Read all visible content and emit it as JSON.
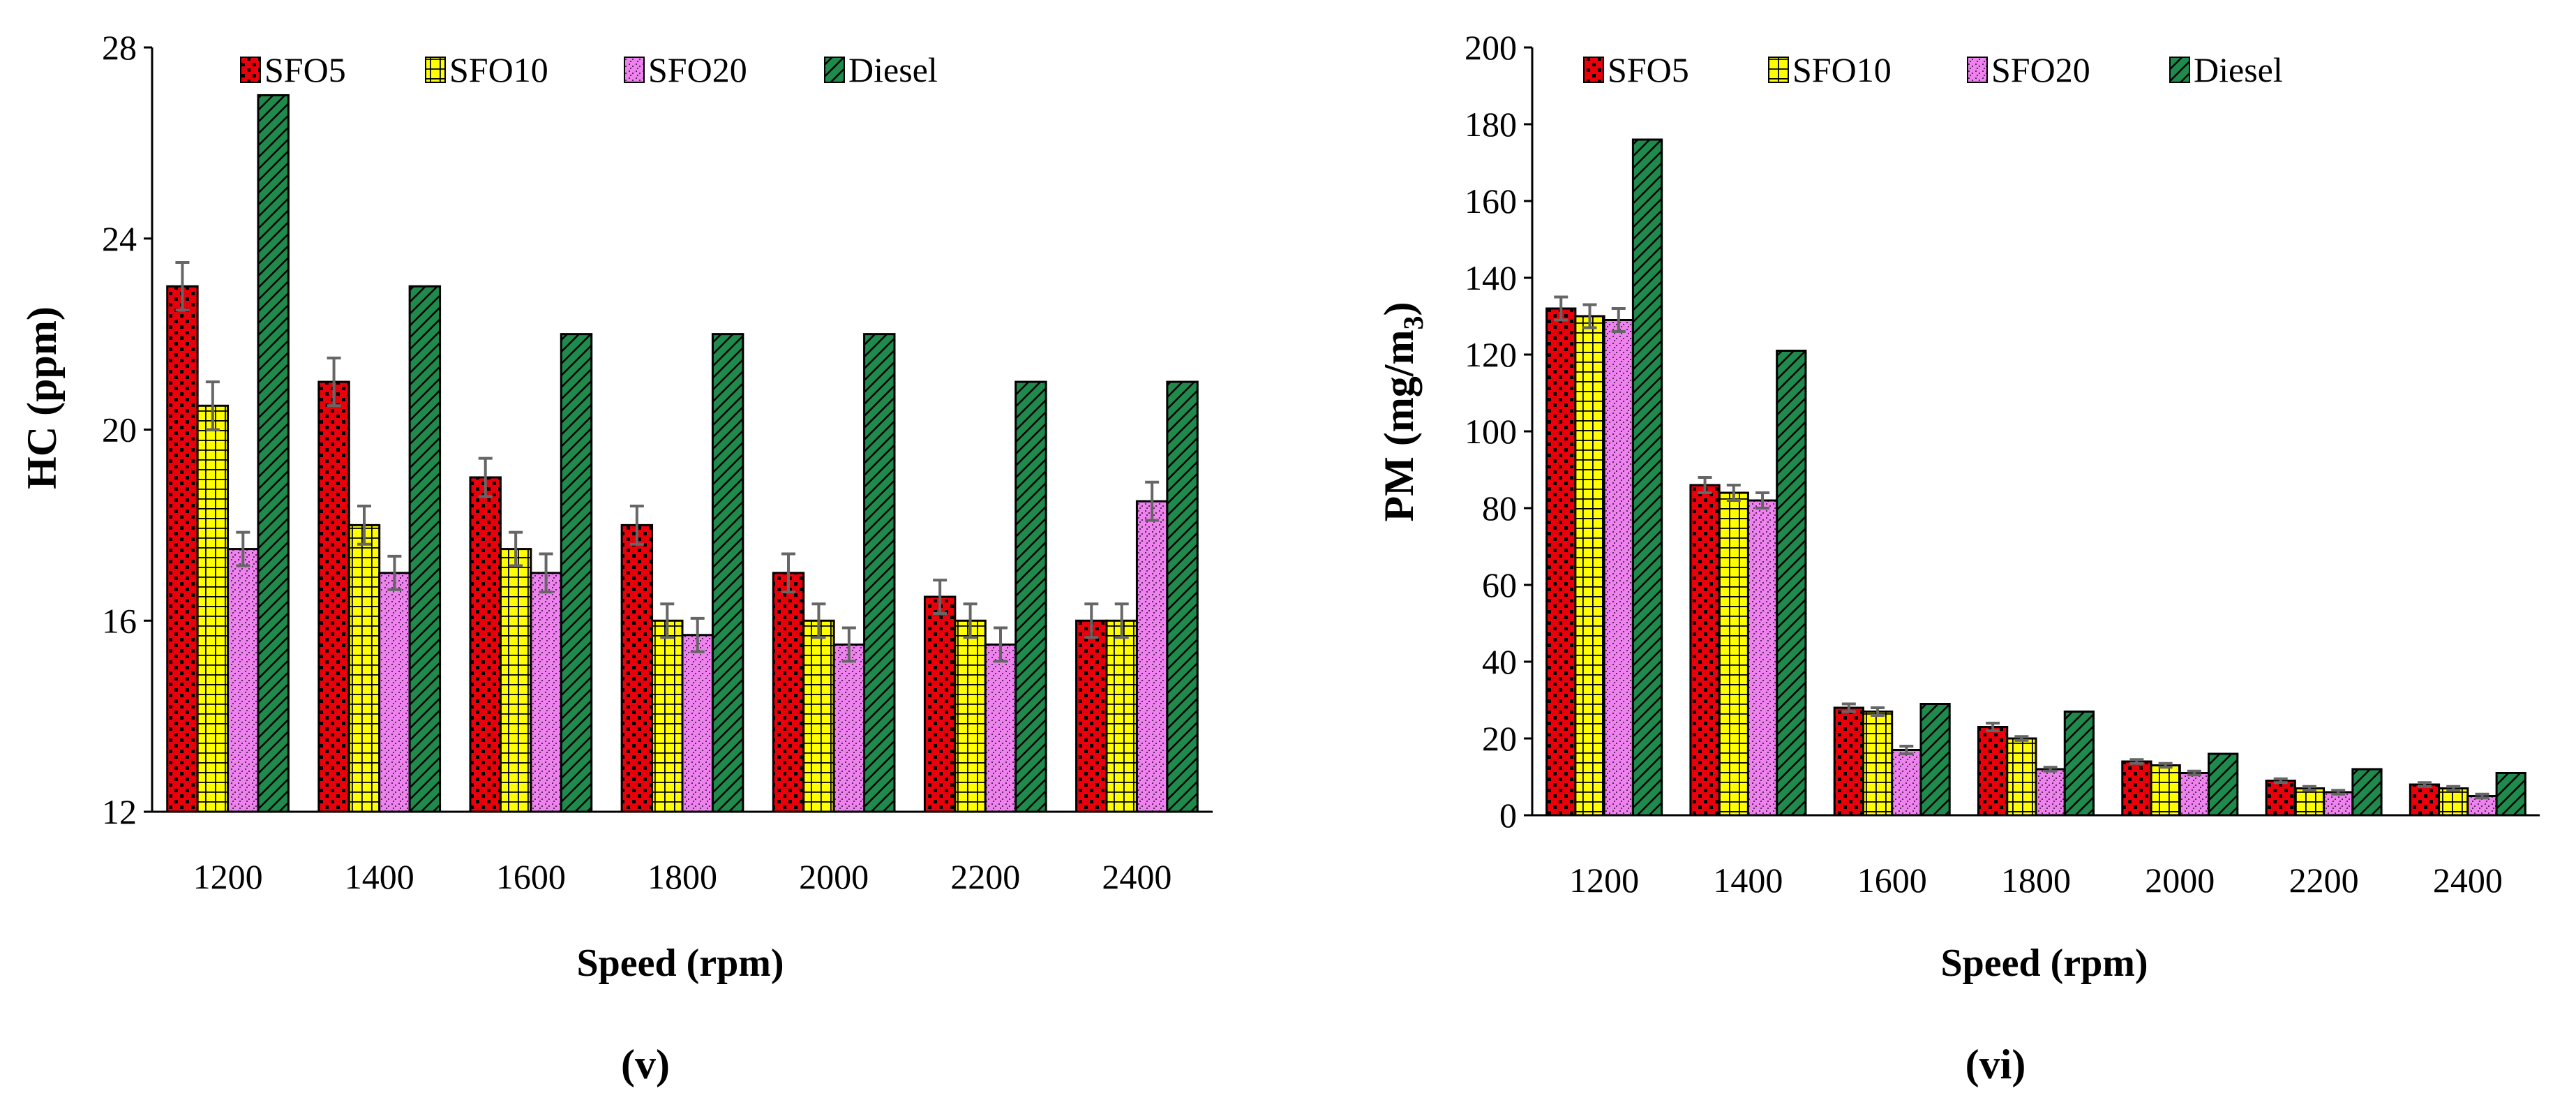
{
  "colors": {
    "SFO5": "#e8000b",
    "SFO10": "#ffff00",
    "SFO20": "#ee82ee",
    "Diesel": "#1f8a4c",
    "error_bar": "#666666"
  },
  "chart_data": [
    {
      "type": "bar",
      "categories": [
        "1200",
        "1400",
        "1600",
        "1800",
        "2000",
        "2200",
        "2400"
      ],
      "series": [
        {
          "name": "SFO5",
          "values": [
            23,
            21,
            19,
            18,
            17,
            16.5,
            16
          ],
          "errors": [
            0.5,
            0.5,
            0.4,
            0.4,
            0.4,
            0.35,
            0.35
          ]
        },
        {
          "name": "SFO10",
          "values": [
            20.5,
            18,
            17.5,
            16,
            16,
            16,
            16
          ],
          "errors": [
            0.5,
            0.4,
            0.35,
            0.35,
            0.35,
            0.35,
            0.35
          ]
        },
        {
          "name": "SFO20",
          "values": [
            17.5,
            17,
            17,
            15.7,
            15.5,
            15.5,
            18.5
          ],
          "errors": [
            0.35,
            0.35,
            0.4,
            0.35,
            0.35,
            0.35,
            0.4
          ]
        },
        {
          "name": "Diesel",
          "values": [
            27,
            23,
            22,
            22,
            22,
            21,
            21
          ]
        }
      ],
      "xlabel": "Speed (rpm)",
      "ylabel": "HC (ppm)",
      "ylim": [
        12,
        28
      ],
      "yticks": [
        "12",
        "16",
        "20",
        "24",
        "28"
      ],
      "panel_label": "(v)",
      "legend": "top"
    },
    {
      "type": "bar",
      "categories": [
        "1200",
        "1400",
        "1600",
        "1800",
        "2000",
        "2200",
        "2400"
      ],
      "series": [
        {
          "name": "SFO5",
          "values": [
            132,
            86,
            28,
            23,
            14,
            9,
            8
          ],
          "errors": [
            3,
            2,
            1,
            1,
            0.5,
            0.5,
            0.5
          ]
        },
        {
          "name": "SFO10",
          "values": [
            130,
            84,
            27,
            20,
            13,
            7,
            7
          ],
          "errors": [
            3,
            2,
            1,
            0.5,
            0.5,
            0.5,
            0.5
          ]
        },
        {
          "name": "SFO20",
          "values": [
            129,
            82,
            17,
            12,
            11,
            6,
            5
          ],
          "errors": [
            3,
            2,
            1,
            0.5,
            0.5,
            0.5,
            0.5
          ]
        },
        {
          "name": "Diesel",
          "values": [
            176,
            121,
            29,
            27,
            16,
            12,
            11
          ]
        }
      ],
      "xlabel": "Speed (rpm)",
      "ylabel": "PM (mg/m",
      "ylabel_sub": "3",
      "ylabel_close": ")",
      "ylim": [
        0,
        200
      ],
      "yticks": [
        "0",
        "20",
        "40",
        "60",
        "80",
        "100",
        "120",
        "140",
        "160",
        "180",
        "200"
      ],
      "panel_label": "(vi)",
      "legend": "top"
    }
  ]
}
